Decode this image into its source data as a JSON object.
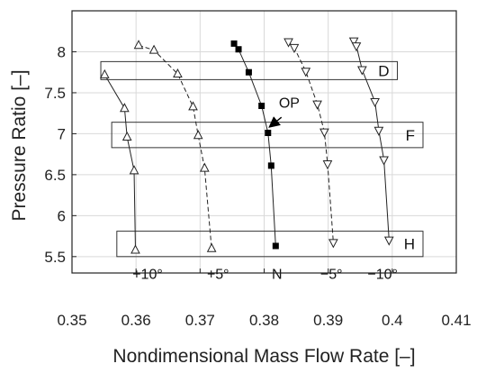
{
  "chart_data": {
    "type": "line",
    "title": "",
    "xlabel": "Nondimensional Mass Flow Rate [–]",
    "ylabel": "Pressure Ratio [–]",
    "xlim": [
      0.35,
      0.41
    ],
    "ylim": [
      5.3,
      8.5
    ],
    "xticks": [
      0.35,
      0.36,
      0.37,
      0.38,
      0.39,
      0.4,
      0.41
    ],
    "xtick_labels": [
      "0.35",
      "0.36",
      "0.37",
      "0.38",
      "0.39",
      "0.4",
      "0.41"
    ],
    "yticks": [
      5.5,
      6,
      6.5,
      7,
      7.5,
      8
    ],
    "ytick_labels": [
      "5.5",
      "6",
      "6.5",
      "7",
      "7.5",
      "8"
    ],
    "grid": true,
    "series": [
      {
        "name": "+10°",
        "marker": "triangle-up",
        "line": "solid",
        "x": [
          0.3551,
          0.3582,
          0.3586,
          0.3597,
          0.3599
        ],
        "y": [
          7.72,
          7.31,
          6.96,
          6.55,
          5.58
        ]
      },
      {
        "name": "+5°",
        "marker": "triangle-up",
        "line": "dashed",
        "x": [
          0.3604,
          0.3628,
          0.3665,
          0.3689,
          0.3697,
          0.3707,
          0.3718
        ],
        "y": [
          8.08,
          8.02,
          7.73,
          7.33,
          6.98,
          6.58,
          5.6
        ]
      },
      {
        "name": "N",
        "marker": "square",
        "line": "solid",
        "x": [
          0.3753,
          0.376,
          0.3776,
          0.3796,
          0.3806,
          0.3811,
          0.3818
        ],
        "y": [
          8.1,
          8.03,
          7.75,
          7.34,
          7.01,
          6.61,
          5.63
        ]
      },
      {
        "name": "−5°",
        "marker": "triangle-down",
        "line": "dashed",
        "x": [
          0.3838,
          0.3847,
          0.3865,
          0.3883,
          0.3894,
          0.3899,
          0.3908
        ],
        "y": [
          8.12,
          8.05,
          7.76,
          7.36,
          7.02,
          6.63,
          5.67
        ]
      },
      {
        "name": "−10°",
        "marker": "triangle-down",
        "line": "solid",
        "x": [
          0.394,
          0.3944,
          0.3953,
          0.3973,
          0.3979,
          0.3987,
          0.3995
        ],
        "y": [
          8.13,
          8.07,
          7.78,
          7.39,
          7.04,
          6.68,
          5.7
        ]
      }
    ],
    "series_labels": [
      {
        "text": "+10°",
        "x": 0.3618,
        "y": 5.23
      },
      {
        "text": "+5°",
        "x": 0.3728,
        "y": 5.23
      },
      {
        "text": "N",
        "x": 0.382,
        "y": 5.23
      },
      {
        "text": "−5°",
        "x": 0.3905,
        "y": 5.23
      },
      {
        "text": "−10°",
        "x": 0.3985,
        "y": 5.23
      }
    ],
    "boxes": [
      {
        "label": "D",
        "x0": 0.3545,
        "x1": 0.4008,
        "y0": 7.66,
        "y1": 7.88
      },
      {
        "label": "F",
        "x0": 0.3562,
        "x1": 0.4048,
        "y0": 6.83,
        "y1": 7.14
      },
      {
        "label": "H",
        "x0": 0.357,
        "x1": 0.4048,
        "y0": 5.5,
        "y1": 5.81
      }
    ],
    "annotations": [
      {
        "text": "OP",
        "x": 0.3823,
        "y": 7.32,
        "arrow_to_x": 0.3808,
        "arrow_to_y": 7.08,
        "arrow_from_x": 0.3827,
        "arrow_from_y": 7.2
      }
    ]
  }
}
